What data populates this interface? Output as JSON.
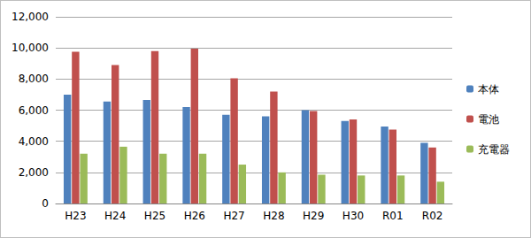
{
  "chart_data": {
    "type": "bar",
    "categories": [
      "H23",
      "H24",
      "H25",
      "H26",
      "H27",
      "H28",
      "H29",
      "H30",
      "R01",
      "R02"
    ],
    "series": [
      {
        "name": "本体",
        "color": "#4f81bd",
        "values": [
          7000,
          6550,
          6650,
          6200,
          5700,
          5600,
          6000,
          5300,
          4950,
          3900
        ]
      },
      {
        "name": "電池",
        "color": "#c0504d",
        "values": [
          9750,
          8900,
          9800,
          9950,
          8050,
          7200,
          5950,
          5400,
          4750,
          3600
        ]
      },
      {
        "name": "充電器",
        "color": "#9bbb59",
        "values": [
          3200,
          3650,
          3200,
          3200,
          2500,
          2000,
          1850,
          1800,
          1800,
          1400
        ]
      }
    ],
    "ylim": [
      0,
      12000
    ],
    "yticks": [
      0,
      {
        "value": 2000,
        "label": "2,000"
      },
      {
        "value": 4000,
        "label": "4,000"
      },
      {
        "value": 6000,
        "label": "6,000"
      },
      {
        "value": 8000,
        "label": "8,000"
      },
      {
        "value": 10000,
        "label": "10,000"
      },
      {
        "value": 12000,
        "label": "12,000"
      }
    ],
    "grid": true,
    "legend": "right"
  }
}
